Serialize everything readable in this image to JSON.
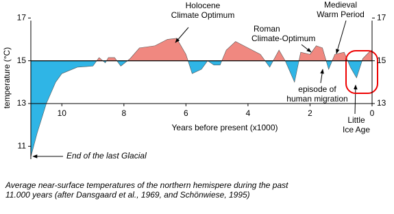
{
  "chart_data": {
    "type": "area",
    "x_label": "Years before present (x1000)",
    "y_label": "temperature (°C)",
    "xlim": [
      11,
      0
    ],
    "xticks": [
      10,
      8,
      6,
      4,
      2,
      0
    ],
    "ylim": [
      10.4,
      17.2
    ],
    "yticks": [
      11,
      13,
      15,
      17
    ],
    "y2lim": [
      10.4,
      17.2
    ],
    "y2ticks": [
      13,
      15,
      17
    ],
    "baseline": 15,
    "above_color": "#f08880",
    "below_color": "#2fb5e6",
    "x": [
      11,
      10.8,
      10.5,
      10.2,
      10,
      9.5,
      9,
      8.8,
      8.6,
      8.5,
      8.3,
      8.1,
      7.8,
      7.5,
      7,
      6.6,
      6.3,
      6.0,
      5.8,
      5.5,
      5.3,
      5.1,
      4.9,
      4.7,
      4.4,
      4.0,
      3.6,
      3.3,
      3.0,
      2.8,
      2.5,
      2.3,
      2.0,
      1.8,
      1.6,
      1.4,
      1.2,
      0.9,
      0.7,
      0.5,
      0.3,
      0.1,
      0
    ],
    "values": [
      10.5,
      11.6,
      13.0,
      14.0,
      14.4,
      14.7,
      14.75,
      15.15,
      14.9,
      15.15,
      15.15,
      14.75,
      15.1,
      15.6,
      15.7,
      16.0,
      16.05,
      15.3,
      14.4,
      14.6,
      15.0,
      14.8,
      14.8,
      15.5,
      15.9,
      15.6,
      15.3,
      14.7,
      15.5,
      15.0,
      14.0,
      15.4,
      15.3,
      15.7,
      15.6,
      14.6,
      15.3,
      15.4,
      14.7,
      14.2,
      15.1,
      15.4,
      15.5
    ],
    "annotations": [
      {
        "lines": [
          "Holocene",
          "Climate Optimum"
        ]
      },
      {
        "lines": [
          "Roman",
          "Climate-Optimum"
        ]
      },
      {
        "lines": [
          "Medieval",
          "Warm Period"
        ]
      },
      {
        "lines": [
          "episode of",
          "human migration"
        ]
      },
      {
        "lines": [
          "Little",
          "Ice Age"
        ]
      },
      {
        "lines": [
          "End of the last Glacial"
        ]
      }
    ]
  },
  "caption": [
    "Average near-surface temperatures of the northern hemispere during the past",
    "11.000 years (after Dansgaard et al., 1969, and Schönwiese, 1995)"
  ]
}
